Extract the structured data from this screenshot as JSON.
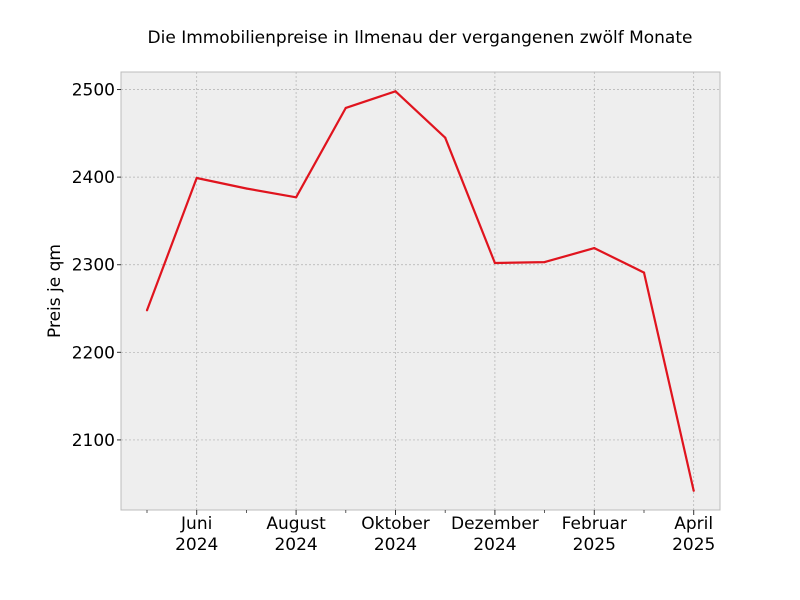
{
  "chart_data": {
    "type": "line",
    "title": "Die Immobilienpreise in Ilmenau der vergangenen zwölf Monate",
    "xlabel": "",
    "ylabel": "Preis je qm",
    "x": [
      "2024-05",
      "2024-06",
      "2024-07",
      "2024-08",
      "2024-09",
      "2024-10",
      "2024-11",
      "2024-12",
      "2025-01",
      "2025-02",
      "2025-03",
      "2025-04"
    ],
    "series": [
      {
        "values": [
          2248,
          2399,
          2387,
          2377,
          2479,
          2498,
          2445,
          2302,
          2303,
          2319,
          2291,
          2042
        ],
        "color": "#e0141e"
      }
    ],
    "ylim": [
      2020,
      2520
    ],
    "yticks": [
      2100,
      2200,
      2300,
      2400,
      2500
    ],
    "xticks": [
      {
        "x": "2024-06",
        "line1": "Juni",
        "line2": "2024"
      },
      {
        "x": "2024-08",
        "line1": "August",
        "line2": "2024"
      },
      {
        "x": "2024-10",
        "line1": "Oktober",
        "line2": "2024"
      },
      {
        "x": "2024-12",
        "line1": "Dezember",
        "line2": "2024"
      },
      {
        "x": "2025-02",
        "line1": "Februar",
        "line2": "2025"
      },
      {
        "x": "2025-04",
        "line1": "April",
        "line2": "2025"
      }
    ],
    "minor_xticks": [
      "2024-05",
      "2024-07",
      "2024-09",
      "2024-11",
      "2025-01",
      "2025-03"
    ],
    "grid": true,
    "background_color": "#eeeeee",
    "grid_color": "#b0b0b0"
  }
}
